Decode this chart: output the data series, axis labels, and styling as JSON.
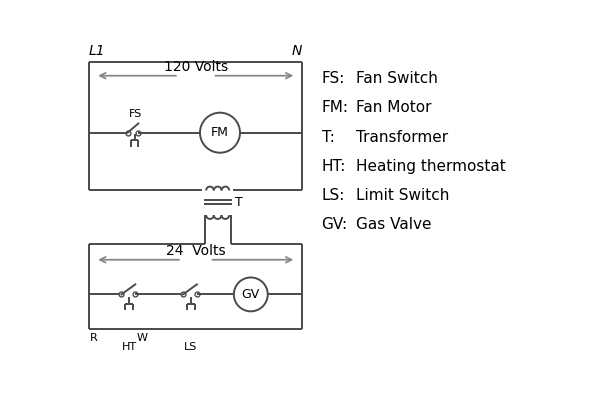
{
  "bg_color": "#ffffff",
  "line_color": "#4a4a4a",
  "arrow_color": "#888888",
  "text_color": "#000000",
  "legend": [
    [
      "FS:",
      "Fan Switch"
    ],
    [
      "FM:",
      "Fan Motor"
    ],
    [
      "T:",
      "Transformer"
    ],
    [
      "HT:",
      "Heating thermostat"
    ],
    [
      "LS:",
      "Limit Switch"
    ],
    [
      "GV:",
      "Gas Valve"
    ]
  ],
  "L1_label": "L1",
  "N_label": "N",
  "volts120": "120 Volts",
  "volts24": "24  Volts",
  "R_label": "R",
  "W_label": "W",
  "HT_label": "HT",
  "LS_label": "LS",
  "T_label": "T",
  "FS_label": "FS",
  "FM_label": "FM",
  "GV_label": "GV"
}
